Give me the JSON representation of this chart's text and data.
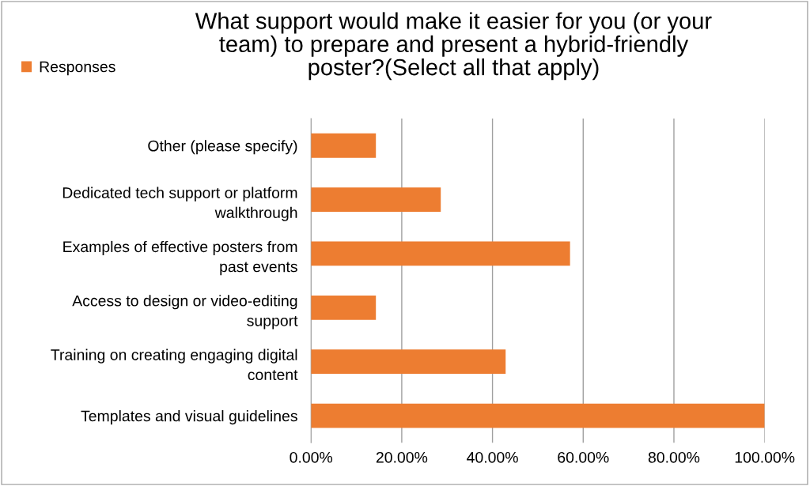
{
  "chart_data": {
    "type": "bar",
    "orientation": "horizontal",
    "title": "What support would make it easier for you (or your\nteam) to prepare and present a hybrid-friendly\nposter?(Select all that apply)",
    "categories": [
      "Other (please specify)",
      "Dedicated tech support or platform\nwalkthrough",
      "Examples of effective posters from\npast events",
      "Access to design or video-editing\nsupport",
      "Training on creating engaging digital\ncontent",
      "Templates and visual guidelines"
    ],
    "series": [
      {
        "name": "Responses",
        "color": "#ed7d31",
        "values": [
          14.3,
          28.6,
          57.1,
          14.3,
          42.9,
          100
        ]
      }
    ],
    "xlim": [
      0,
      100
    ],
    "xticks": [
      {
        "value": 0,
        "label": "0.00%"
      },
      {
        "value": 20,
        "label": "20.00%"
      },
      {
        "value": 40,
        "label": "40.00%"
      },
      {
        "value": 60,
        "label": "60.00%"
      },
      {
        "value": 80,
        "label": "80.00%"
      },
      {
        "value": 100,
        "label": "100.00%"
      }
    ],
    "grid": "x",
    "legend": "top left"
  }
}
